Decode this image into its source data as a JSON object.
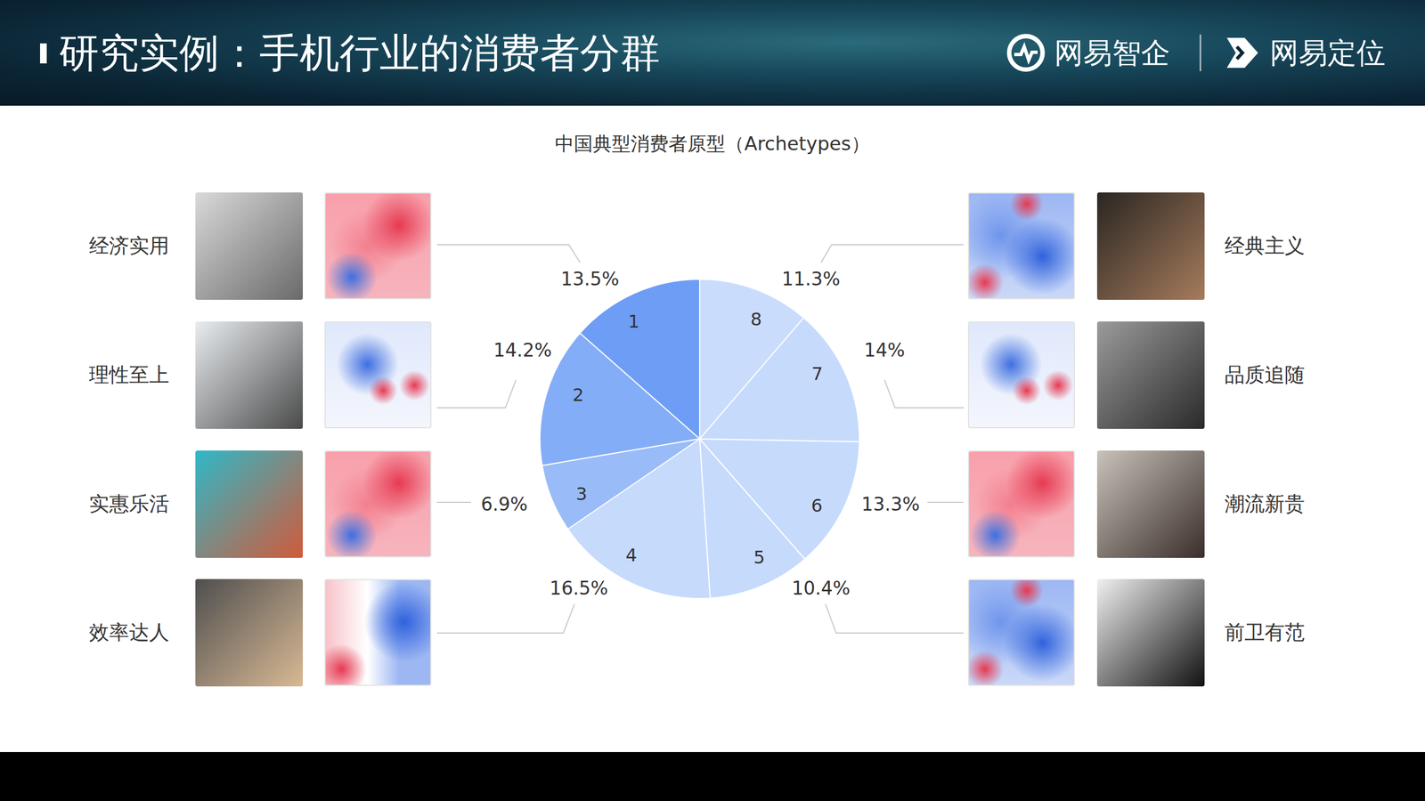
{
  "slide": {
    "title": "研究实例：手机行业的消费者分群",
    "logos": [
      "网易智企",
      "网易定位"
    ]
  },
  "chart_data": {
    "type": "pie",
    "title": "中国典型消费者原型（Archetypes）",
    "categories": [
      "1",
      "2",
      "3",
      "4",
      "5",
      "6",
      "7",
      "8"
    ],
    "values": [
      13.5,
      14.2,
      6.9,
      16.5,
      10.4,
      13.3,
      14,
      11.3
    ],
    "value_labels": [
      "13.5%",
      "14.2%",
      "6.9%",
      "16.5%",
      "10.4%",
      "13.3%",
      "14%",
      "11.3%"
    ],
    "archetypes": [
      "经济实用",
      "理性至上",
      "实惠乐活",
      "效率达人",
      "前卫有范",
      "潮流新贵",
      "品质追随",
      "经典主义"
    ],
    "colors": [
      "#6e9df5",
      "#84adf7",
      "#99bcf8",
      "#c6dafc",
      "#c6dafc",
      "#c6dafc",
      "#c6dafc",
      "#cadcfc"
    ],
    "data_labels": true
  }
}
